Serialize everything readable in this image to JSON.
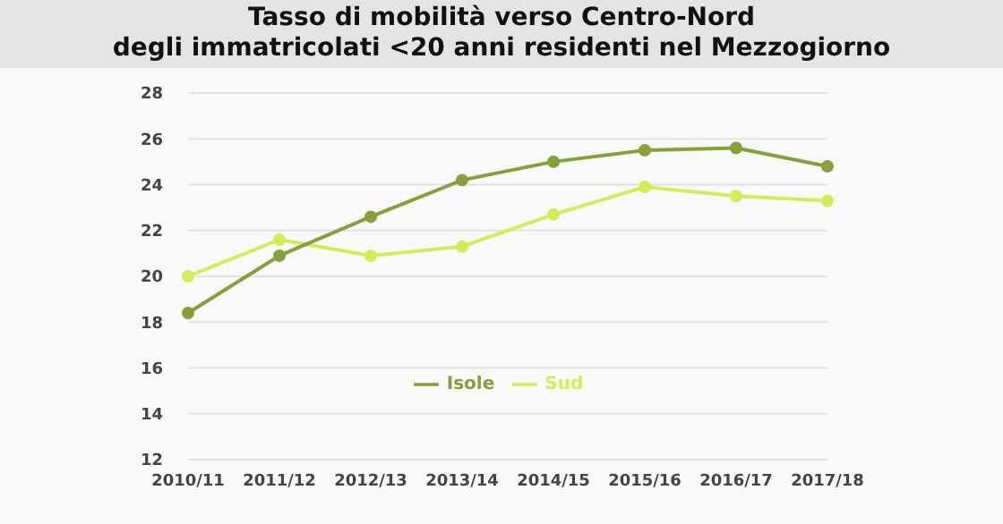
{
  "chart_data": {
    "type": "line",
    "title": "Tasso di mobilità verso Centro-Nord\ndegli immatricolati <20 anni residenti nel Mezzogiorno",
    "categories": [
      "2010/11",
      "2011/12",
      "2012/13",
      "2013/14",
      "2014/15",
      "2015/16",
      "2016/17",
      "2017/18"
    ],
    "series": [
      {
        "name": "Sud",
        "color": "#d4ec5a",
        "values": [
          20,
          21.6,
          20.9,
          21.3,
          22.7,
          23.9,
          23.5,
          23.3
        ]
      },
      {
        "name": "Isole",
        "color": "#86a03c",
        "values": [
          18.4,
          20.9,
          22.6,
          24.2,
          25.0,
          25.5,
          25.6,
          24.8
        ]
      }
    ],
    "ylim": [
      12,
      28
    ],
    "yticks": [
      12,
      14,
      16,
      18,
      20,
      22,
      24,
      26,
      28
    ],
    "grid": "y",
    "legend": "bottom",
    "marker": "circle",
    "line_style": "solid"
  }
}
